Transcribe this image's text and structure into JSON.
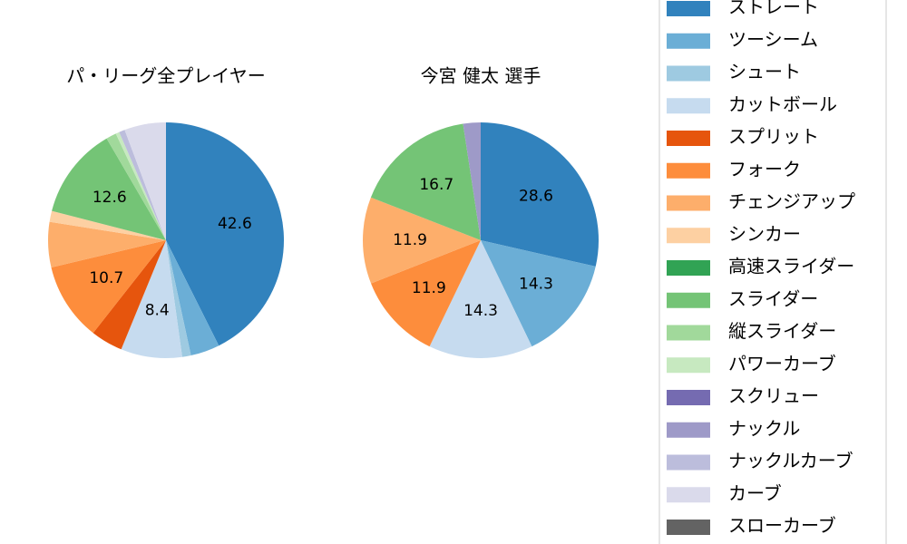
{
  "chart_data": [
    {
      "type": "pie",
      "title": "パ・リーグ全プレイヤー",
      "categories": [
        "ストレート",
        "ツーシーム",
        "シュート",
        "カットボール",
        "スプリット",
        "フォーク",
        "チェンジアップ",
        "シンカー",
        "高速スライダー",
        "スライダー",
        "縦スライダー",
        "パワーカーブ",
        "スクリュー",
        "ナックル",
        "ナックルカーブ",
        "カーブ",
        "スローカーブ"
      ],
      "colors": [
        "#3182bd",
        "#6baed6",
        "#9ecae1",
        "#c6dbef",
        "#e6550d",
        "#fd8d3c",
        "#fdae6b",
        "#fdd0a2",
        "#31a354",
        "#74c476",
        "#a1d99b",
        "#c7e9c0",
        "#756bb1",
        "#9e9ac8",
        "#bcbddc",
        "#dadaeb",
        "#636363"
      ],
      "values": [
        42.6,
        4.0,
        1.2,
        8.4,
        4.4,
        10.7,
        6.2,
        1.5,
        0,
        12.6,
        1.4,
        0.5,
        0,
        0,
        0.8,
        5.7,
        0
      ],
      "value_labels": [
        "42.6",
        null,
        null,
        "8.4",
        null,
        "10.7",
        null,
        null,
        null,
        "12.6",
        null,
        null,
        null,
        null,
        null,
        null,
        null
      ]
    },
    {
      "type": "pie",
      "title": "今宮 健太  選手",
      "values": [
        28.6,
        14.3,
        0,
        14.3,
        0,
        11.9,
        11.9,
        0,
        0,
        16.7,
        0,
        0,
        0,
        2.4,
        0,
        0,
        0
      ],
      "value_labels": [
        "28.6",
        "14.3",
        null,
        "14.3",
        null,
        "11.9",
        "11.9",
        null,
        null,
        "16.7",
        null,
        null,
        null,
        null,
        null,
        null,
        null
      ]
    }
  ]
}
